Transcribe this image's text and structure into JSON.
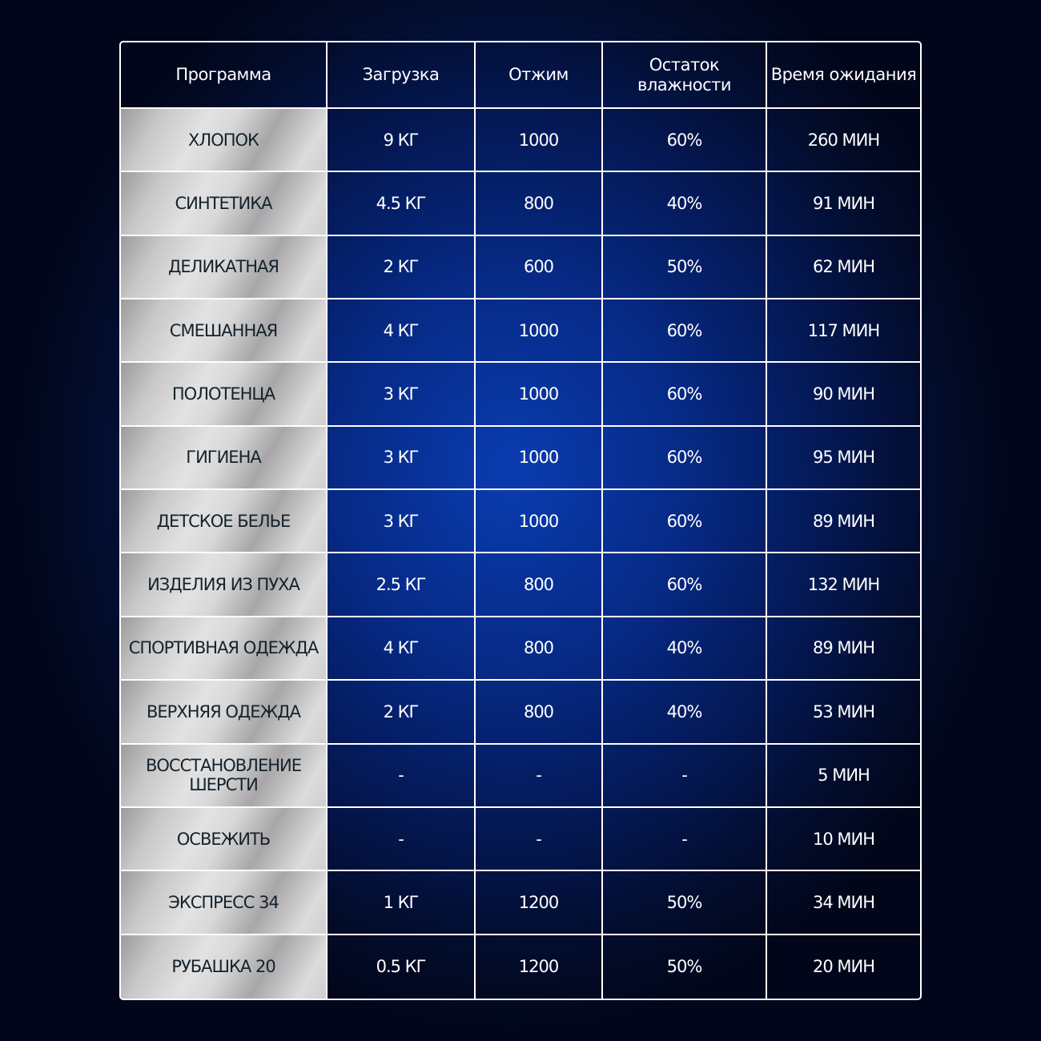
{
  "headers": [
    "Программа",
    "Загрузка",
    "Отжим",
    "Остаток влажности",
    "Время ожидания"
  ],
  "rows": [
    {
      "program": "ХЛОПОК",
      "load": "9 КГ",
      "spin": "1000",
      "moisture": "60%",
      "time": "260 МИН"
    },
    {
      "program": "СИНТЕТИКА",
      "load": "4.5 КГ",
      "spin": "800",
      "moisture": "40%",
      "time": "91 МИН"
    },
    {
      "program": "ДЕЛИКАТНАЯ",
      "load": "2 КГ",
      "spin": "600",
      "moisture": "50%",
      "time": "62 МИН"
    },
    {
      "program": "СМЕШАННАЯ",
      "load": "4 КГ",
      "spin": "1000",
      "moisture": "60%",
      "time": "117 МИН"
    },
    {
      "program": "ПОЛОТЕНЦА",
      "load": "3 КГ",
      "spin": "1000",
      "moisture": "60%",
      "time": "90 МИН"
    },
    {
      "program": "ГИГИЕНА",
      "load": "3 КГ",
      "spin": "1000",
      "moisture": "60%",
      "time": "95 МИН"
    },
    {
      "program": "ДЕТСКОЕ БЕЛЬЕ",
      "load": "3 КГ",
      "spin": "1000",
      "moisture": "60%",
      "time": "89 МИН"
    },
    {
      "program": "ИЗДЕЛИЯ ИЗ ПУХА",
      "load": "2.5 КГ",
      "spin": "800",
      "moisture": "60%",
      "time": "132 МИН"
    },
    {
      "program": "СПОРТИВНАЯ ОДЕЖДА",
      "load": "4 КГ",
      "spin": "800",
      "moisture": "40%",
      "time": "89 МИН"
    },
    {
      "program": "ВЕРХНЯЯ ОДЕЖДА",
      "load": "2 КГ",
      "spin": "800",
      "moisture": "40%",
      "time": "53 МИН"
    },
    {
      "program": "ВОССТАНОВЛЕНИЕ ШЕРСТИ",
      "load": "-",
      "spin": "-",
      "moisture": "-",
      "time": "5 МИН"
    },
    {
      "program": "ОСВЕЖИТЬ",
      "load": "-",
      "spin": "-",
      "moisture": "-",
      "time": "10 МИН"
    },
    {
      "program": "ЭКСПРЕСС 34",
      "load": "1 КГ",
      "spin": "1200",
      "moisture": "50%",
      "time": "34 МИН"
    },
    {
      "program": "РУБАШКА 20",
      "load": "0.5 КГ",
      "spin": "1200",
      "moisture": "50%",
      "time": "20 МИН"
    }
  ]
}
